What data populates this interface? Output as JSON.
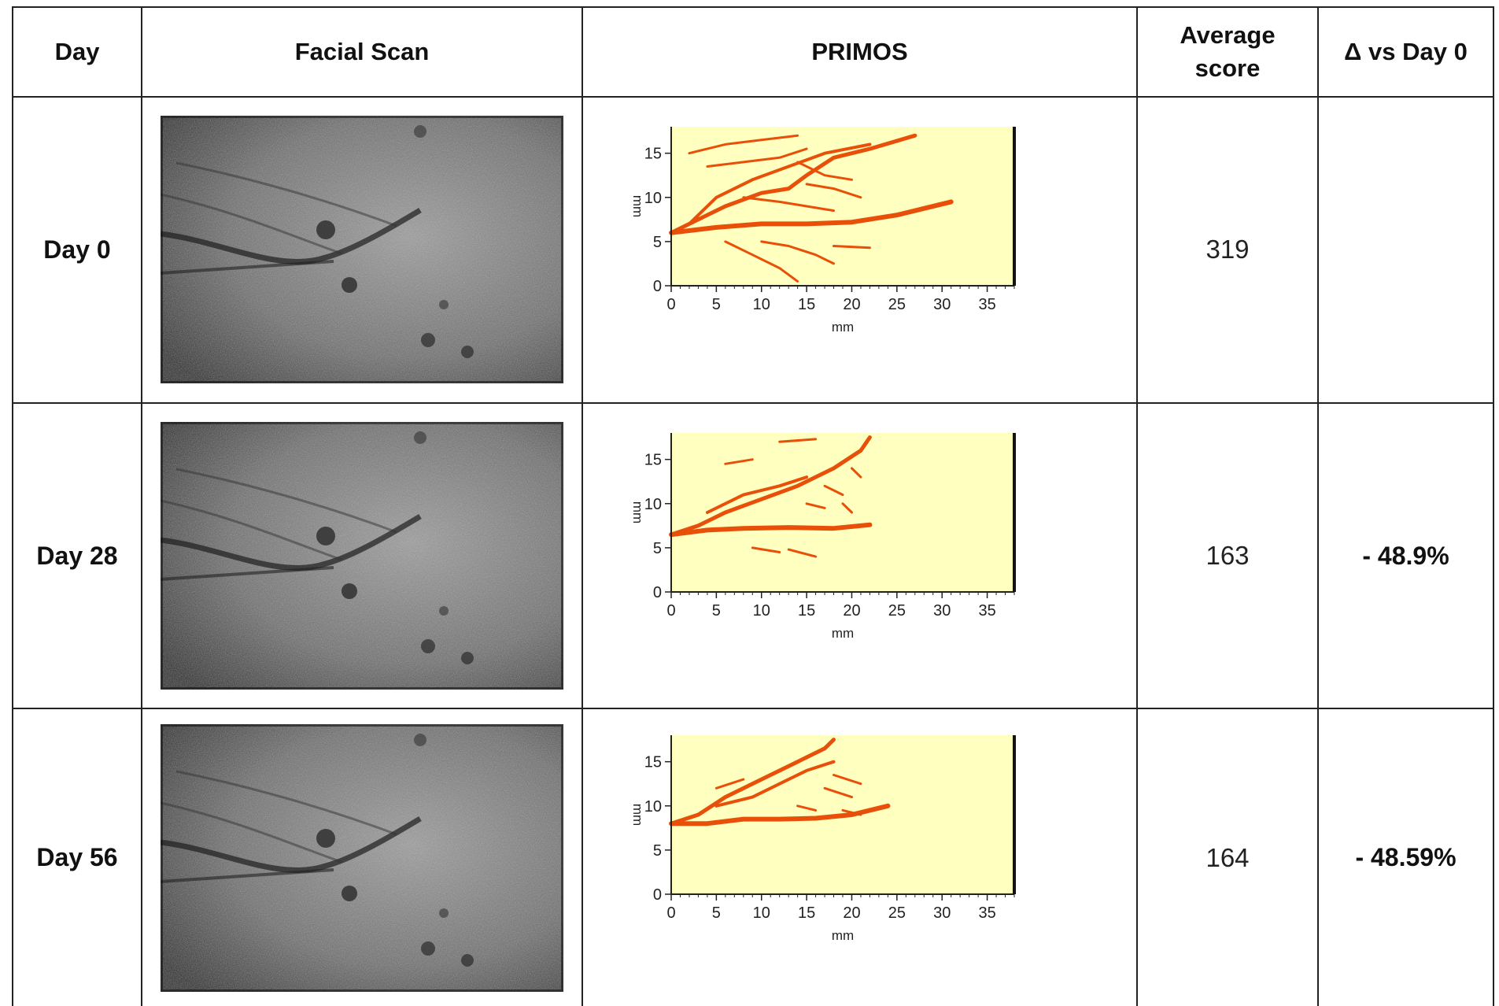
{
  "headers": {
    "day": "Day",
    "facial_scan": "Facial Scan",
    "primos": "PRIMOS",
    "average_score_line1": "Average",
    "average_score_line2": "score",
    "delta": "Δ vs Day 0"
  },
  "rows": [
    {
      "day": "Day 0",
      "score": "319",
      "delta": ""
    },
    {
      "day": "Day 28",
      "score": "163",
      "delta": "- 48.9%"
    },
    {
      "day": "Day 56",
      "score": "164",
      "delta": "- 48.59%"
    }
  ],
  "chart_data": [
    {
      "type": "heatmap",
      "title": "",
      "xlabel": "mm",
      "ylabel": "mm",
      "xlim": [
        0,
        38
      ],
      "ylim": [
        0,
        18
      ],
      "xticks": [
        "0",
        "5",
        "10",
        "15",
        "20",
        "25",
        "30",
        "35"
      ],
      "yticks": [
        "0",
        "5",
        "10",
        "15"
      ],
      "colors": {
        "background": "#ffffc0",
        "wrinkle": "#e8500a"
      }
    },
    {
      "type": "heatmap",
      "title": "",
      "xlabel": "mm",
      "ylabel": "mm",
      "xlim": [
        0,
        38
      ],
      "ylim": [
        0,
        18
      ],
      "xticks": [
        "0",
        "5",
        "10",
        "15",
        "20",
        "25",
        "30",
        "35"
      ],
      "yticks": [
        "0",
        "5",
        "10",
        "15"
      ],
      "colors": {
        "background": "#ffffc0",
        "wrinkle": "#e8500a"
      }
    },
    {
      "type": "heatmap",
      "title": "",
      "xlabel": "mm",
      "ylabel": "mm",
      "xlim": [
        0,
        38
      ],
      "ylim": [
        0,
        18
      ],
      "xticks": [
        "0",
        "5",
        "10",
        "15",
        "20",
        "25",
        "30",
        "35"
      ],
      "yticks": [
        "0",
        "5",
        "10",
        "15"
      ],
      "colors": {
        "background": "#ffffc0",
        "wrinkle": "#e8500a"
      }
    }
  ]
}
